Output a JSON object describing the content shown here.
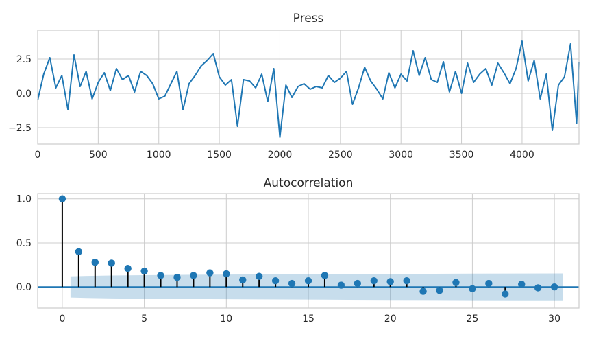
{
  "chart_data": [
    {
      "type": "line",
      "title": "Press",
      "xlabel": "",
      "ylabel": "",
      "xlim": [
        0,
        4470
      ],
      "ylim": [
        -3.7,
        4.6
      ],
      "xticks": [
        0,
        500,
        1000,
        1500,
        2000,
        2500,
        3000,
        3500,
        4000
      ],
      "yticks": [
        -2.5,
        0.0,
        2.5
      ],
      "ytick_labels": [
        "−2.5",
        "0.0",
        "2.5"
      ],
      "grid": true,
      "series": [
        {
          "color": "#1f77b4",
          "x": [
            0,
            50,
            100,
            150,
            200,
            250,
            300,
            350,
            400,
            450,
            500,
            550,
            600,
            650,
            700,
            750,
            800,
            850,
            900,
            950,
            1000,
            1050,
            1100,
            1150,
            1200,
            1250,
            1300,
            1350,
            1400,
            1450,
            1500,
            1550,
            1600,
            1650,
            1700,
            1750,
            1800,
            1850,
            1900,
            1950,
            2000,
            2050,
            2100,
            2150,
            2200,
            2250,
            2300,
            2350,
            2400,
            2450,
            2500,
            2550,
            2600,
            2650,
            2700,
            2750,
            2800,
            2850,
            2900,
            2950,
            3000,
            3050,
            3100,
            3150,
            3200,
            3250,
            3300,
            3350,
            3400,
            3450,
            3500,
            3550,
            3600,
            3650,
            3700,
            3750,
            3800,
            3850,
            3900,
            3950,
            4000,
            4050,
            4100,
            4150,
            4200,
            4250,
            4300,
            4350,
            4400,
            4450,
            4470
          ],
          "y": [
            -0.5,
            1.4,
            2.6,
            0.4,
            1.3,
            -1.2,
            2.8,
            0.5,
            1.6,
            -0.4,
            0.8,
            1.5,
            0.2,
            1.8,
            1.0,
            1.3,
            0.1,
            1.6,
            1.3,
            0.7,
            -0.4,
            -0.2,
            0.7,
            1.6,
            -1.2,
            0.7,
            1.3,
            2.0,
            2.4,
            2.9,
            1.2,
            0.6,
            1.0,
            -2.4,
            1.0,
            0.9,
            0.4,
            1.4,
            -0.6,
            1.8,
            -3.2,
            0.6,
            -0.3,
            0.5,
            0.7,
            0.3,
            0.5,
            0.4,
            1.3,
            0.8,
            1.1,
            1.6,
            -0.8,
            0.4,
            1.9,
            0.9,
            0.3,
            -0.4,
            1.5,
            0.4,
            1.4,
            0.9,
            3.1,
            1.3,
            2.6,
            1.0,
            0.8,
            2.3,
            0.1,
            1.6,
            0.0,
            2.2,
            0.8,
            1.4,
            1.8,
            0.6,
            2.2,
            1.5,
            0.7,
            1.8,
            3.8,
            0.9,
            2.4,
            -0.4,
            1.4,
            -2.7,
            0.6,
            1.2,
            3.6,
            -2.2,
            2.3
          ]
        }
      ]
    },
    {
      "type": "scatter",
      "title": "Autocorrelation",
      "xlabel": "",
      "ylabel": "",
      "xlim": [
        -1.5,
        31.5
      ],
      "ylim": [
        -0.24,
        1.06
      ],
      "xticks": [
        0,
        5,
        10,
        15,
        20,
        25,
        30
      ],
      "yticks": [
        0.0,
        0.5,
        1.0
      ],
      "ytick_labels": [
        "0.0",
        "0.5",
        "1.0"
      ],
      "grid": true,
      "lags": [
        0,
        1,
        2,
        3,
        4,
        5,
        6,
        7,
        8,
        9,
        10,
        11,
        12,
        13,
        14,
        15,
        16,
        17,
        18,
        19,
        20,
        21,
        22,
        23,
        24,
        25,
        26,
        27,
        28,
        29,
        30
      ],
      "acf": [
        1.0,
        0.4,
        0.28,
        0.27,
        0.21,
        0.18,
        0.13,
        0.11,
        0.13,
        0.16,
        0.15,
        0.08,
        0.12,
        0.07,
        0.04,
        0.07,
        0.13,
        0.02,
        0.04,
        0.07,
        0.06,
        0.07,
        -0.05,
        -0.04,
        0.05,
        -0.02,
        0.04,
        -0.08,
        0.03,
        -0.01,
        0.0
      ],
      "confint_x": [
        0.5,
        1.5,
        3,
        5,
        8,
        12,
        16,
        20,
        25,
        30.5
      ],
      "confint_halfwidth": [
        0.12,
        0.125,
        0.13,
        0.134,
        0.138,
        0.142,
        0.145,
        0.148,
        0.151,
        0.153
      ],
      "stem_color": "#000000",
      "marker_color": "#1f77b4",
      "band_color": "#1f77b4"
    }
  ]
}
